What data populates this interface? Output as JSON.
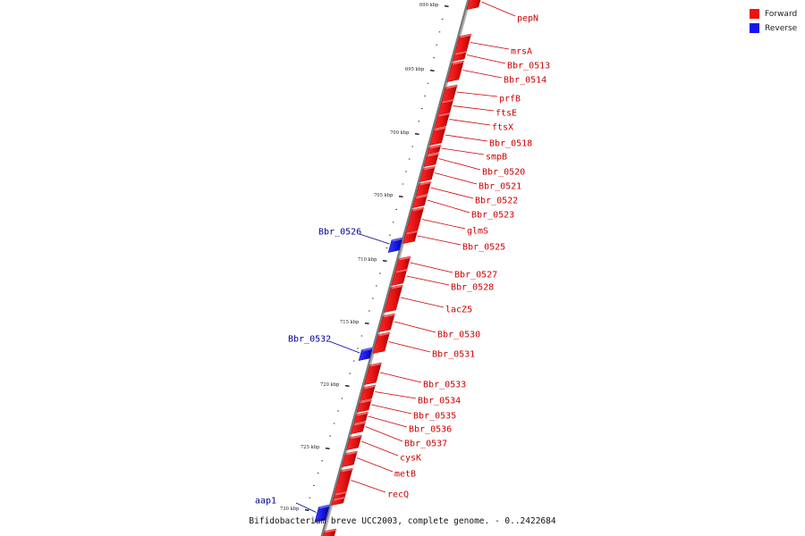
{
  "caption": "Bifidobacterium breve UCC2003, complete genome. - 0..2422684",
  "legend": [
    {
      "label": "Forward",
      "color": "#ee1111"
    },
    {
      "label": "Reverse",
      "color": "#1515ee"
    }
  ],
  "colors": {
    "forward": "#ee1111",
    "reverse": "#1515ee",
    "backbone": "#888888",
    "forward_label": "#cc0000",
    "reverse_label": "#000099"
  },
  "ticks": [
    {
      "label": "690 kbp"
    },
    {
      "label": "695 kbp"
    },
    {
      "label": "700 kbp"
    },
    {
      "label": "705 kbp"
    },
    {
      "label": "710 kbp"
    },
    {
      "label": "715 kbp"
    },
    {
      "label": "720 kbp"
    },
    {
      "label": "725 kbp"
    },
    {
      "label": "730 kbp"
    }
  ],
  "genes": [
    {
      "name": "pepN",
      "strand": "forward"
    },
    {
      "name": "mrsA",
      "strand": "forward"
    },
    {
      "name": "Bbr_0513",
      "strand": "forward"
    },
    {
      "name": "Bbr_0514",
      "strand": "forward"
    },
    {
      "name": "prfB",
      "strand": "forward"
    },
    {
      "name": "ftsE",
      "strand": "forward"
    },
    {
      "name": "ftsX",
      "strand": "forward"
    },
    {
      "name": "Bbr_0518",
      "strand": "forward"
    },
    {
      "name": "smpB",
      "strand": "forward"
    },
    {
      "name": "Bbr_0520",
      "strand": "forward"
    },
    {
      "name": "Bbr_0521",
      "strand": "forward"
    },
    {
      "name": "Bbr_0522",
      "strand": "forward"
    },
    {
      "name": "Bbr_0523",
      "strand": "forward"
    },
    {
      "name": "glmS",
      "strand": "forward"
    },
    {
      "name": "Bbr_0525",
      "strand": "forward"
    },
    {
      "name": "Bbr_0526",
      "strand": "reverse"
    },
    {
      "name": "Bbr_0527",
      "strand": "forward"
    },
    {
      "name": "Bbr_0528",
      "strand": "forward"
    },
    {
      "name": "lacZ5",
      "strand": "forward"
    },
    {
      "name": "Bbr_0530",
      "strand": "forward"
    },
    {
      "name": "Bbr_0531",
      "strand": "forward"
    },
    {
      "name": "Bbr_0532",
      "strand": "reverse"
    },
    {
      "name": "Bbr_0533",
      "strand": "forward"
    },
    {
      "name": "Bbr_0534",
      "strand": "forward"
    },
    {
      "name": "Bbr_0535",
      "strand": "forward"
    },
    {
      "name": "Bbr_0536",
      "strand": "forward"
    },
    {
      "name": "Bbr_0537",
      "strand": "forward"
    },
    {
      "name": "cysK",
      "strand": "forward"
    },
    {
      "name": "metB",
      "strand": "forward"
    },
    {
      "name": "recQ",
      "strand": "forward"
    },
    {
      "name": "aap1",
      "strand": "reverse"
    }
  ]
}
